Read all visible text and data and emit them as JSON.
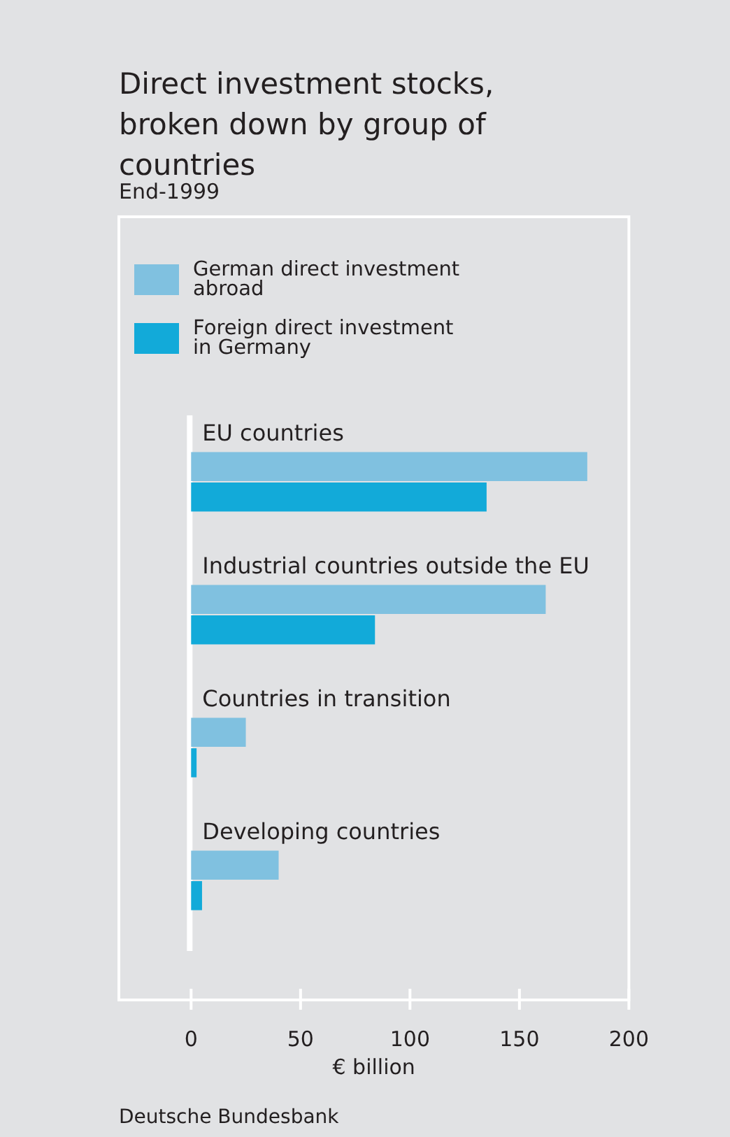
{
  "chart_data": {
    "type": "bar",
    "orientation": "horizontal",
    "title": "Direct investment stocks, broken down by group of countries",
    "subtitle": "End-1999",
    "xlabel": "€ billion",
    "categories": [
      "EU countries",
      "Industrial countries outside the EU",
      "Countries in transition",
      "Developing countries"
    ],
    "series": [
      {
        "name": "German direct investment abroad",
        "color": "#80c1e0",
        "values": [
          181,
          162,
          25,
          40
        ]
      },
      {
        "name": "Foreign direct investment in Germany",
        "color": "#12aad9",
        "values": [
          135,
          84,
          2.5,
          5
        ]
      }
    ],
    "xlim": [
      -33,
      200
    ],
    "xticks": [
      0,
      50,
      100,
      150,
      200
    ],
    "grid": false,
    "legend": "top left",
    "annotations": [
      "Deutsche Bundesbank"
    ]
  }
}
